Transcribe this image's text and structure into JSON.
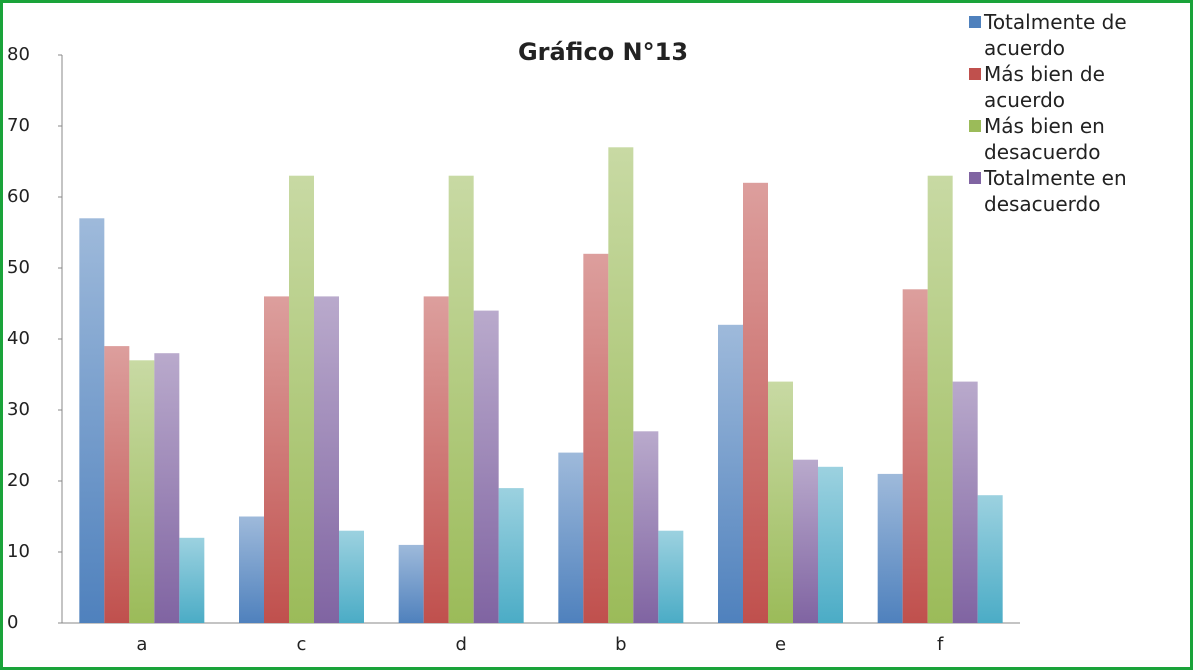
{
  "chart_data": {
    "type": "bar",
    "title": "Gráfico N°13",
    "categories": [
      "a",
      "c",
      "d",
      "b",
      "e",
      "f"
    ],
    "series": [
      {
        "name": "Totalmente de acuerdo",
        "color": "#4f81bd",
        "values": [
          57,
          15,
          11,
          24,
          42,
          21
        ]
      },
      {
        "name": "Más bien de acuerdo",
        "color": "#c0504d",
        "values": [
          39,
          46,
          46,
          52,
          62,
          47
        ]
      },
      {
        "name": "Más bien en desacuerdo",
        "color": "#9bbb59",
        "values": [
          37,
          63,
          63,
          67,
          34,
          63
        ]
      },
      {
        "name": "Totalmente en desacuerdo",
        "color": "#8064a2",
        "values": [
          38,
          46,
          44,
          27,
          23,
          34
        ]
      },
      {
        "color": "#4bacc6",
        "values": [
          12,
          13,
          19,
          13,
          22,
          18
        ]
      }
    ],
    "ylim": [
      0,
      80
    ],
    "yticks": [
      0,
      10,
      20,
      30,
      40,
      50,
      60,
      70,
      80
    ],
    "grid": false
  }
}
